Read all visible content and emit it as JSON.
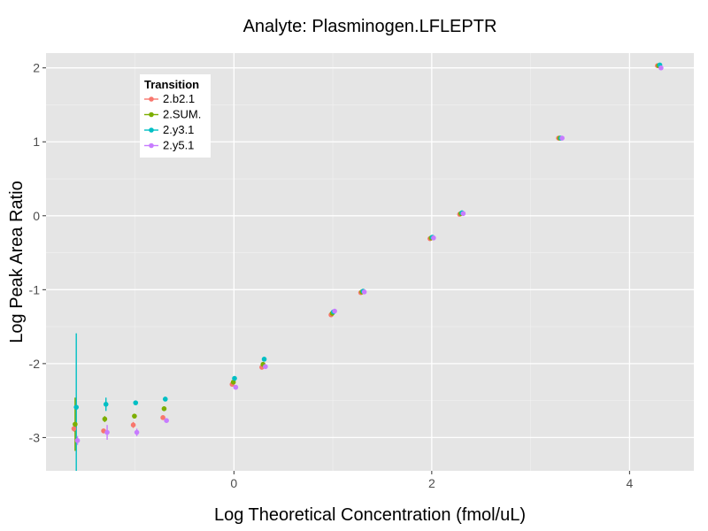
{
  "chart_data": {
    "type": "scatter",
    "title": "Analyte: Plasminogen.LFLEPTR",
    "xlabel": "Log Theoretical Concentration (fmol/uL)",
    "ylabel": "Log Peak Area Ratio",
    "xlim": [
      -1.9,
      4.65
    ],
    "ylim": [
      -3.45,
      2.2
    ],
    "x_ticks": [
      0,
      2,
      4
    ],
    "y_ticks": [
      -3,
      -2,
      -1,
      0,
      1,
      2
    ],
    "grid": true,
    "legend": {
      "title": "Transition",
      "placement": "top-left"
    },
    "series": [
      {
        "name": "2.b2.1",
        "color": "#F8766D",
        "points": [
          {
            "x": -1.6,
            "y": -2.88,
            "err": 0.04
          },
          {
            "x": -1.3,
            "y": -2.91,
            "err": 0.03
          },
          {
            "x": -1.0,
            "y": -2.83,
            "err": 0.04
          },
          {
            "x": -0.7,
            "y": -2.73,
            "err": 0.02
          },
          {
            "x": 0.0,
            "y": -2.28,
            "err": 0.03
          },
          {
            "x": 0.3,
            "y": -2.05,
            "err": 0.02
          },
          {
            "x": 1.0,
            "y": -1.34,
            "err": 0.02
          },
          {
            "x": 1.3,
            "y": -1.04,
            "err": 0.02
          },
          {
            "x": 2.0,
            "y": -0.31,
            "err": 0.01
          },
          {
            "x": 2.3,
            "y": 0.02,
            "err": 0.01
          },
          {
            "x": 3.3,
            "y": 1.05,
            "err": 0.01
          },
          {
            "x": 4.3,
            "y": 2.03,
            "err": 0.01
          }
        ]
      },
      {
        "name": "2.SUM.",
        "color": "#7CAE00",
        "points": [
          {
            "x": -1.6,
            "y": -2.82,
            "err": 0.36
          },
          {
            "x": -1.3,
            "y": -2.75,
            "err": 0.04
          },
          {
            "x": -1.0,
            "y": -2.71,
            "err": 0.03
          },
          {
            "x": -0.7,
            "y": -2.61,
            "err": 0.03
          },
          {
            "x": 0.0,
            "y": -2.25,
            "err": 0.03
          },
          {
            "x": 0.3,
            "y": -2.01,
            "err": 0.03
          },
          {
            "x": 1.0,
            "y": -1.32,
            "err": 0.02
          },
          {
            "x": 1.3,
            "y": -1.03,
            "err": 0.02
          },
          {
            "x": 2.0,
            "y": -0.3,
            "err": 0.01
          },
          {
            "x": 2.3,
            "y": 0.03,
            "err": 0.01
          },
          {
            "x": 3.3,
            "y": 1.05,
            "err": 0.01
          },
          {
            "x": 4.3,
            "y": 2.03,
            "err": 0.01
          }
        ]
      },
      {
        "name": "2.y3.1",
        "color": "#00BFC4",
        "points": [
          {
            "x": -1.6,
            "y": -2.59,
            "err": 1.0
          },
          {
            "x": -1.3,
            "y": -2.55,
            "err": 0.09
          },
          {
            "x": -1.0,
            "y": -2.53,
            "err": 0.02
          },
          {
            "x": -0.7,
            "y": -2.48,
            "err": 0.02
          },
          {
            "x": 0.0,
            "y": -2.2,
            "err": 0.02
          },
          {
            "x": 0.3,
            "y": -1.94,
            "err": 0.02
          },
          {
            "x": 1.0,
            "y": -1.3,
            "err": 0.02
          },
          {
            "x": 1.3,
            "y": -1.02,
            "err": 0.02
          },
          {
            "x": 2.0,
            "y": -0.29,
            "err": 0.01
          },
          {
            "x": 2.3,
            "y": 0.04,
            "err": 0.01
          },
          {
            "x": 3.3,
            "y": 1.05,
            "err": 0.01
          },
          {
            "x": 4.3,
            "y": 2.04,
            "err": 0.01
          }
        ]
      },
      {
        "name": "2.y5.1",
        "color": "#C77CFF",
        "points": [
          {
            "x": -1.6,
            "y": -3.04,
            "err": 0.06
          },
          {
            "x": -1.3,
            "y": -2.93,
            "err": 0.1
          },
          {
            "x": -1.0,
            "y": -2.93,
            "err": 0.05
          },
          {
            "x": -0.7,
            "y": -2.77,
            "err": 0.03
          },
          {
            "x": 0.0,
            "y": -2.32,
            "err": 0.02
          },
          {
            "x": 0.3,
            "y": -2.04,
            "err": 0.02
          },
          {
            "x": 1.0,
            "y": -1.29,
            "err": 0.03
          },
          {
            "x": 1.3,
            "y": -1.03,
            "err": 0.02
          },
          {
            "x": 2.0,
            "y": -0.3,
            "err": 0.01
          },
          {
            "x": 2.3,
            "y": 0.03,
            "err": 0.01
          },
          {
            "x": 3.3,
            "y": 1.05,
            "err": 0.01
          },
          {
            "x": 4.3,
            "y": 2.0,
            "err": 0.01
          }
        ]
      }
    ]
  }
}
